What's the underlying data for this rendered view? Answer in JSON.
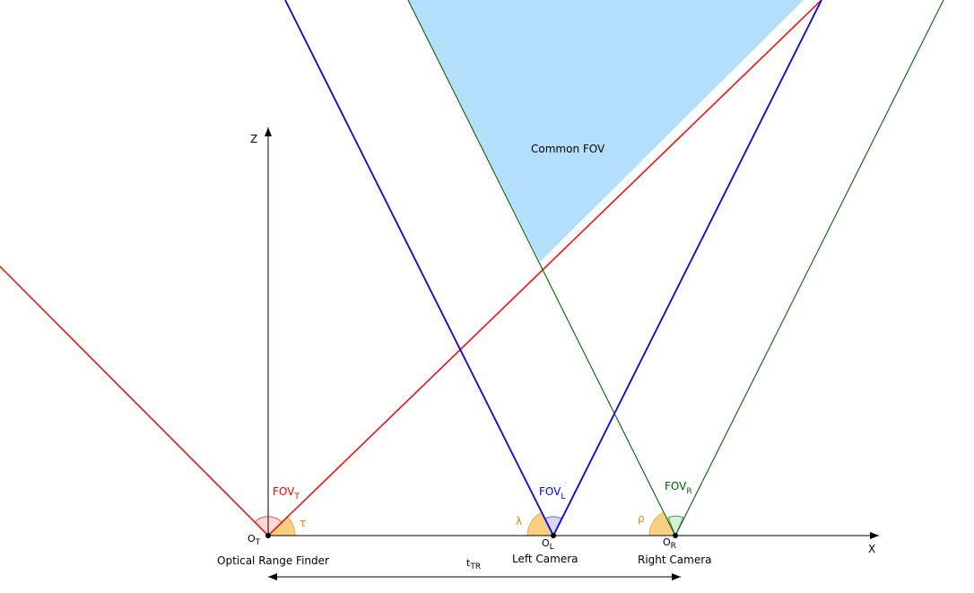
{
  "axes": {
    "z_label": "Z",
    "x_label": "X"
  },
  "region": {
    "label": "Common FOV",
    "fill_color": "#b3dffd"
  },
  "cameras": {
    "range_finder": {
      "origin_main": "O",
      "origin_sub": "T",
      "name": "Optical Range Finder",
      "fov_main": "FOV",
      "fov_sub": "T",
      "angle_symbol": "τ",
      "color": "#ff0000"
    },
    "left": {
      "origin_main": "O",
      "origin_sub": "L",
      "name": "Left Camera",
      "fov_main": "FOV",
      "fov_sub": "L",
      "angle_symbol": "λ",
      "color": "#0000ff"
    },
    "right": {
      "origin_main": "O",
      "origin_sub": "R",
      "name": "Right Camera",
      "fov_main": "FOV",
      "fov_sub": "R",
      "angle_symbol": "ρ",
      "color": "#006400"
    }
  },
  "baseline": {
    "label_main": "t",
    "label_sub": "TR"
  },
  "angle_fill_color": "#f9c76c",
  "angle_label_color": "#e08a00"
}
